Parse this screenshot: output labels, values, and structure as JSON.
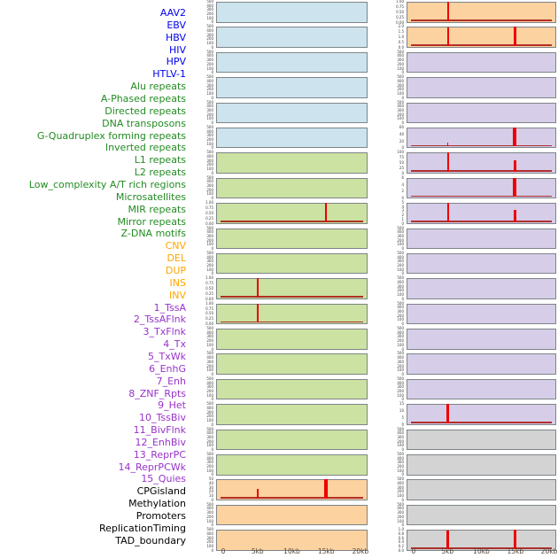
{
  "figure": {
    "x_ticks": [
      "0",
      "5kb",
      "10kb",
      "15kb",
      "20kb"
    ],
    "x_range_kb": [
      0,
      20
    ],
    "colors": {
      "label_virus": "#0000ee",
      "label_repeat": "#228b22",
      "label_sv": "#ffa500",
      "label_chromatin": "#9932cc",
      "label_other": "#000000",
      "fill_virus": "#cde4ee",
      "fill_repeat": "#cbe2a2",
      "fill_sv": "#fcd2a0",
      "fill_chromatin": "#d6cde8",
      "fill_other": "#d3d3d3",
      "spike": "#ee0000",
      "baseline": "#aa1e19",
      "panel_border": "#7e8488"
    }
  },
  "chart_data": {
    "type": "bar",
    "description": "Grid of 44 mini enrichment tracks (left column = features 1-22, right column = features 23-44); red spikes mark enrichment at genomic positions, x axis 0-20kb",
    "features": [
      {
        "label": "AAV2",
        "group": "virus",
        "yticks": [
          "500",
          "400",
          "300",
          "200",
          "100",
          "0"
        ],
        "ymax": 500,
        "spikes": [],
        "baseline": false
      },
      {
        "label": "EBV",
        "group": "virus",
        "yticks": [
          "500",
          "400",
          "300",
          "200",
          "100",
          "0"
        ],
        "ymax": 500,
        "spikes": [],
        "baseline": false
      },
      {
        "label": "HBV",
        "group": "virus",
        "yticks": [
          "500",
          "400",
          "300",
          "200",
          "100",
          "0"
        ],
        "ymax": 500,
        "spikes": [],
        "baseline": false
      },
      {
        "label": "HIV",
        "group": "virus",
        "yticks": [
          "500",
          "400",
          "300",
          "200",
          "100",
          "0"
        ],
        "ymax": 500,
        "spikes": [],
        "baseline": false
      },
      {
        "label": "HPV",
        "group": "virus",
        "yticks": [
          "500",
          "400",
          "300",
          "200",
          "100",
          "0"
        ],
        "ymax": 500,
        "spikes": [],
        "baseline": false
      },
      {
        "label": "HTLV-1",
        "group": "virus",
        "yticks": [
          "500",
          "400",
          "300",
          "200",
          "100",
          "0"
        ],
        "ymax": 500,
        "spikes": [],
        "baseline": false
      },
      {
        "label": "Alu repeats",
        "group": "repeat",
        "yticks": [
          "500",
          "400",
          "300",
          "200",
          "100",
          "0"
        ],
        "ymax": 500,
        "spikes": [],
        "baseline": false
      },
      {
        "label": "A-Phased repeats",
        "group": "repeat",
        "yticks": [
          "500",
          "400",
          "300",
          "200",
          "100",
          "0"
        ],
        "ymax": 500,
        "spikes": [],
        "baseline": false
      },
      {
        "label": "Directed repeats",
        "group": "repeat",
        "yticks": [
          "1.00",
          "0.75",
          "0.50",
          "0.25",
          "0.00"
        ],
        "ymax": 1.0,
        "spikes": [
          {
            "kb": 15,
            "v": 1.0,
            "w": 2
          }
        ],
        "baseline": true
      },
      {
        "label": "DNA transposons",
        "group": "repeat",
        "yticks": [
          "500",
          "400",
          "300",
          "200",
          "100",
          "0"
        ],
        "ymax": 500,
        "spikes": [],
        "baseline": false
      },
      {
        "label": "G-Quadruplex forming repeats",
        "group": "repeat",
        "yticks": [
          "500",
          "400",
          "300",
          "200",
          "100",
          "0"
        ],
        "ymax": 500,
        "spikes": [],
        "baseline": false
      },
      {
        "label": "Inverted repeats",
        "group": "repeat",
        "yticks": [
          "1.00",
          "0.75",
          "0.50",
          "0.25",
          "0.00"
        ],
        "ymax": 1.0,
        "spikes": [
          {
            "kb": 5,
            "v": 1.0,
            "w": 2
          }
        ],
        "baseline": true
      },
      {
        "label": "L1 repeats",
        "group": "repeat",
        "yticks": [
          "1.00",
          "0.75",
          "0.50",
          "0.25",
          "0.00"
        ],
        "ymax": 1.0,
        "spikes": [
          {
            "kb": 5,
            "v": 1.0,
            "w": 2.5
          }
        ],
        "baseline": true
      },
      {
        "label": "L2 repeats",
        "group": "repeat",
        "yticks": [
          "500",
          "400",
          "300",
          "200",
          "100",
          "0"
        ],
        "ymax": 500,
        "spikes": [],
        "baseline": false
      },
      {
        "label": "Low_complexity A/T rich regions",
        "group": "repeat",
        "yticks": [
          "500",
          "400",
          "300",
          "200",
          "100",
          "0"
        ],
        "ymax": 500,
        "spikes": [],
        "baseline": false
      },
      {
        "label": "Microsatellites",
        "group": "repeat",
        "yticks": [
          "500",
          "400",
          "300",
          "200",
          "100",
          "0"
        ],
        "ymax": 500,
        "spikes": [],
        "baseline": false
      },
      {
        "label": "MIR repeats",
        "group": "repeat",
        "yticks": [
          "500",
          "400",
          "300",
          "200",
          "100",
          "0"
        ],
        "ymax": 500,
        "spikes": [],
        "baseline": false
      },
      {
        "label": "Mirror repeats",
        "group": "repeat",
        "yticks": [
          "500",
          "400",
          "300",
          "200",
          "100",
          "0"
        ],
        "ymax": 500,
        "spikes": [],
        "baseline": false
      },
      {
        "label": "Z-DNA motifs",
        "group": "repeat",
        "yticks": [
          "500",
          "400",
          "300",
          "200",
          "100",
          "0"
        ],
        "ymax": 500,
        "spikes": [],
        "baseline": false
      },
      {
        "label": "CNV",
        "group": "sv",
        "yticks": [
          "50",
          "40",
          "30",
          "20",
          "10",
          "0"
        ],
        "ymax": 50,
        "spikes": [
          {
            "kb": 5,
            "v": 25,
            "w": 2
          },
          {
            "kb": 15,
            "v": 55,
            "w": 3.5
          }
        ],
        "baseline": true
      },
      {
        "label": "DEL",
        "group": "sv",
        "yticks": [
          "500",
          "400",
          "300",
          "200",
          "100",
          "0"
        ],
        "ymax": 500,
        "spikes": [],
        "baseline": false
      },
      {
        "label": "DUP",
        "group": "sv",
        "yticks": [
          "500",
          "400",
          "300",
          "200",
          "100",
          "0"
        ],
        "ymax": 500,
        "spikes": [],
        "baseline": false
      },
      {
        "label": "INS",
        "group": "sv",
        "yticks": [
          "1.00",
          "0.75",
          "0.50",
          "0.25",
          "0.00"
        ],
        "ymax": 1.0,
        "spikes": [
          {
            "kb": 5,
            "v": 1.0,
            "w": 2
          }
        ],
        "baseline": true
      },
      {
        "label": "INV",
        "group": "sv",
        "yticks": [
          "2.0",
          "1.5",
          "1.0",
          "0.5",
          "0.0"
        ],
        "ymax": 2.0,
        "spikes": [
          {
            "kb": 5,
            "v": 1.95,
            "w": 2
          },
          {
            "kb": 15,
            "v": 2.05,
            "w": 3
          }
        ],
        "baseline": true
      },
      {
        "label": "1_TssA",
        "group": "chromatin",
        "yticks": [
          "500",
          "400",
          "300",
          "200",
          "100",
          "0"
        ],
        "ymax": 500,
        "spikes": [],
        "baseline": false
      },
      {
        "label": "2_TssAFlnk",
        "group": "chromatin",
        "yticks": [
          "500",
          "400",
          "300",
          "200",
          "100",
          "0"
        ],
        "ymax": 500,
        "spikes": [],
        "baseline": false
      },
      {
        "label": "3_TxFlnk",
        "group": "chromatin",
        "yticks": [
          "500",
          "400",
          "300",
          "200",
          "100",
          "0"
        ],
        "ymax": 500,
        "spikes": [],
        "baseline": false
      },
      {
        "label": "4_Tx",
        "group": "chromatin",
        "yticks": [
          "60",
          "40",
          "20",
          "0"
        ],
        "ymax": 60,
        "spikes": [
          {
            "kb": 5,
            "v": 13,
            "w": 1.5
          },
          {
            "kb": 15,
            "v": 66,
            "w": 4
          }
        ],
        "baseline": true
      },
      {
        "label": "5_TxWk",
        "group": "chromatin",
        "yticks": [
          "100",
          "75",
          "50",
          "25",
          "0"
        ],
        "ymax": 100,
        "spikes": [
          {
            "kb": 5,
            "v": 100,
            "w": 2
          },
          {
            "kb": 15,
            "v": 58,
            "w": 2.5
          }
        ],
        "baseline": true
      },
      {
        "label": "6_EnhG",
        "group": "chromatin",
        "yticks": [
          "6",
          "4",
          "2",
          "0"
        ],
        "ymax": 6,
        "spikes": [
          {
            "kb": 5,
            "v": 0.3,
            "w": 1.5
          },
          {
            "kb": 15,
            "v": 6.6,
            "w": 4
          }
        ],
        "baseline": true
      },
      {
        "label": "7_Enh",
        "group": "chromatin",
        "yticks": [
          "5",
          "4",
          "3",
          "2",
          "1",
          "0"
        ],
        "ymax": 5,
        "spikes": [
          {
            "kb": 5,
            "v": 5.2,
            "w": 2
          },
          {
            "kb": 15,
            "v": 3.1,
            "w": 3
          }
        ],
        "baseline": true
      },
      {
        "label": "8_ZNF_Rpts",
        "group": "chromatin",
        "yticks": [
          "500",
          "400",
          "300",
          "200",
          "100",
          "0"
        ],
        "ymax": 500,
        "spikes": [],
        "baseline": false
      },
      {
        "label": "9_Het",
        "group": "chromatin",
        "yticks": [
          "500",
          "400",
          "300",
          "200",
          "100",
          "0"
        ],
        "ymax": 500,
        "spikes": [],
        "baseline": false
      },
      {
        "label": "10_TssBiv",
        "group": "chromatin",
        "yticks": [
          "500",
          "400",
          "300",
          "200",
          "100",
          "0"
        ],
        "ymax": 500,
        "spikes": [],
        "baseline": false
      },
      {
        "label": "11_BivFlnk",
        "group": "chromatin",
        "yticks": [
          "500",
          "400",
          "300",
          "200",
          "100",
          "0"
        ],
        "ymax": 500,
        "spikes": [],
        "baseline": false
      },
      {
        "label": "12_EnhBiv",
        "group": "chromatin",
        "yticks": [
          "500",
          "400",
          "300",
          "200",
          "100",
          "0"
        ],
        "ymax": 500,
        "spikes": [],
        "baseline": false
      },
      {
        "label": "13_ReprPC",
        "group": "chromatin",
        "yticks": [
          "500",
          "400",
          "300",
          "200",
          "100",
          "0"
        ],
        "ymax": 500,
        "spikes": [],
        "baseline": false
      },
      {
        "label": "14_ReprPCWk",
        "group": "chromatin",
        "yticks": [
          "500",
          "400",
          "300",
          "200",
          "100",
          "0"
        ],
        "ymax": 500,
        "spikes": [],
        "baseline": false
      },
      {
        "label": "15_Quies",
        "group": "chromatin",
        "yticks": [
          "15",
          "10",
          "5",
          "0"
        ],
        "ymax": 15,
        "spikes": [
          {
            "kb": 5,
            "v": 16,
            "w": 2.5
          },
          {
            "kb": 15,
            "v": 1.3,
            "w": 1.5
          }
        ],
        "baseline": true
      },
      {
        "label": "CPGisland",
        "group": "other",
        "yticks": [
          "500",
          "400",
          "300",
          "200",
          "100",
          "0"
        ],
        "ymax": 500,
        "spikes": [],
        "baseline": false
      },
      {
        "label": "Methylation",
        "group": "other",
        "yticks": [
          "500",
          "400",
          "300",
          "200",
          "100",
          "0"
        ],
        "ymax": 500,
        "spikes": [],
        "baseline": false
      },
      {
        "label": "Promoters",
        "group": "other",
        "yticks": [
          "500",
          "400",
          "300",
          "200",
          "100",
          "0"
        ],
        "ymax": 500,
        "spikes": [],
        "baseline": false
      },
      {
        "label": "ReplicationTiming",
        "group": "other",
        "yticks": [
          "500",
          "400",
          "300",
          "200",
          "100",
          "0"
        ],
        "ymax": 500,
        "spikes": [],
        "baseline": false
      },
      {
        "label": "TAD_boundary",
        "group": "other",
        "yticks": [
          "1.0",
          "0.8",
          "0.6",
          "0.4",
          "0.2",
          "0.0"
        ],
        "ymax": 1.0,
        "spikes": [
          {
            "kb": 5,
            "v": 0.97,
            "w": 2.5
          },
          {
            "kb": 15,
            "v": 1.0,
            "w": 3.5
          }
        ],
        "baseline": true
      }
    ]
  }
}
